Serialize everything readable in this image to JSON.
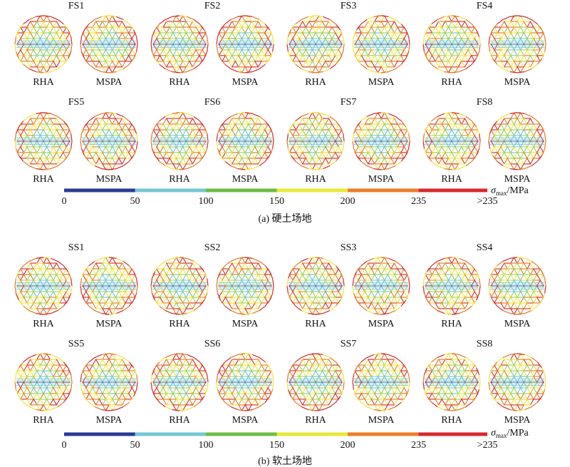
{
  "colors": {
    "bins": [
      "#2a3b95",
      "#74c7d3",
      "#6dbd45",
      "#e6e93a",
      "#ee7d2b",
      "#d8282c"
    ],
    "center": "#6dc3d6",
    "mid": "#96d05a",
    "high": "#f2e23c",
    "hot": "#e27828",
    "red": "#d22a2a"
  },
  "colorbar": {
    "ticks": [
      "0",
      "50",
      "100",
      "150",
      "200",
      "235",
      ">235"
    ],
    "unit_symbol": "σ",
    "unit_sub": "max",
    "unit_rest": "/MPa"
  },
  "dome_labels": {
    "left": "RHA",
    "right": "MSPA"
  },
  "panels": [
    {
      "caption": "(a) 硬土场地",
      "groups": [
        "FS1",
        "FS2",
        "FS3",
        "FS4",
        "FS5",
        "FS6",
        "FS7",
        "FS8"
      ]
    },
    {
      "caption": "(b) 软土场地",
      "groups": [
        "SS1",
        "SS2",
        "SS3",
        "SS4",
        "SS5",
        "SS6",
        "SS7",
        "SS8"
      ]
    }
  ]
}
